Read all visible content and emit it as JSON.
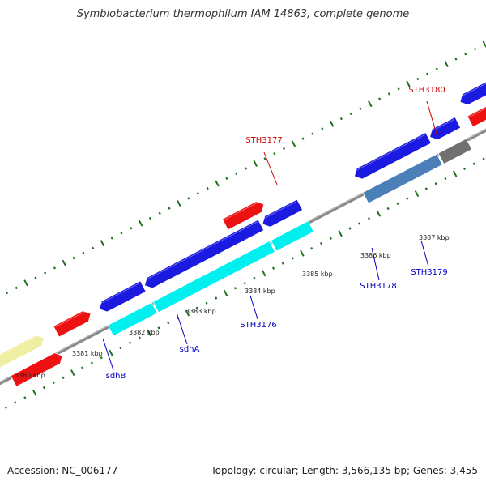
{
  "title": "Symbiobacterium thermophilum IAM 14863, complete genome",
  "footer": {
    "accession": "Accession: NC_006177",
    "summary": "Topology: circular; Length: 3,566,135 bp; Genes: 3,455"
  },
  "colors": {
    "backbone": "#888888",
    "ticks": "#207020",
    "forward_label": "#cc0000",
    "reverse_label": "#0000bb"
  },
  "scale_labels": [
    "3380 kbp",
    "3381 kbp",
    "3382 kbp",
    "3383 kbp",
    "3384 kbp",
    "3385 kbp",
    "3386 kbp",
    "3387 kbp"
  ],
  "features": [
    {
      "id": "f1",
      "label": "",
      "color": "#f0eea0"
    },
    {
      "id": "f2",
      "label": "",
      "color": "#ee1111"
    },
    {
      "id": "f3",
      "label": "",
      "color": "#ee1111"
    },
    {
      "id": "f4",
      "label": "sdhB",
      "color": "#1a1ae0"
    },
    {
      "id": "f5",
      "label": "",
      "color": "#00f0f0"
    },
    {
      "id": "f6",
      "label": "sdhA",
      "color": "#1a1ae0"
    },
    {
      "id": "f7",
      "label": "",
      "color": "#00f0f0"
    },
    {
      "id": "f8",
      "label": "STH3176",
      "color": "#1a1ae0"
    },
    {
      "id": "f9",
      "label": "",
      "color": "#00f0f0"
    },
    {
      "id": "f10",
      "label": "STH3177",
      "color": "#ee1111"
    },
    {
      "id": "f11",
      "label": "STH3178",
      "color": "#1a1ae0"
    },
    {
      "id": "f12",
      "label": "",
      "color": "#4a7fb8"
    },
    {
      "id": "f13",
      "label": "STH3179",
      "color": "#1a1ae0"
    },
    {
      "id": "f14",
      "label": "",
      "color": "#707070"
    },
    {
      "id": "f15",
      "label": "STH3180",
      "color": "#1a1ae0"
    },
    {
      "id": "f16",
      "label": "",
      "color": "#ee1111"
    },
    {
      "id": "f17",
      "label": "",
      "color": "#e020b0"
    },
    {
      "id": "f18",
      "label": "",
      "color": "#ee1111"
    }
  ]
}
